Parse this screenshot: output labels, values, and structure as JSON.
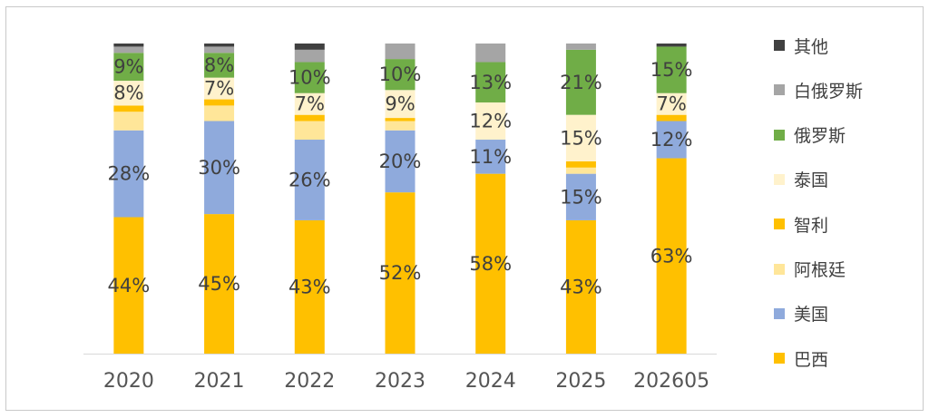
{
  "chart_data": {
    "type": "bar",
    "stacked": true,
    "normalized_to_100": true,
    "categories": [
      "2020",
      "2021",
      "2022",
      "2023",
      "2024",
      "2025",
      "202605"
    ],
    "ylim": [
      0,
      100
    ],
    "grid": false,
    "legend_position": "right",
    "series": [
      {
        "name": "巴西",
        "color": "#FFC000",
        "values": [
          44,
          45,
          43,
          52,
          58,
          43,
          63
        ],
        "labels": [
          "44%",
          "45%",
          "43%",
          "52%",
          "58%",
          "43%",
          "63%"
        ]
      },
      {
        "name": "美国",
        "color": "#8FAADC",
        "values": [
          28,
          30,
          26,
          20,
          11,
          15,
          12
        ],
        "labels": [
          "28%",
          "30%",
          "26%",
          "20%",
          "11%",
          "15%",
          "12%"
        ]
      },
      {
        "name": "阿根廷",
        "color": "#FFE699",
        "values": [
          6,
          5,
          6,
          3,
          0,
          2,
          0
        ],
        "labels": [
          "",
          "",
          "",
          "",
          "",
          "",
          ""
        ]
      },
      {
        "name": "智利",
        "color": "#FFC000",
        "values": [
          2,
          2,
          2,
          1,
          0,
          2,
          2
        ],
        "labels": [
          "",
          "",
          "",
          "",
          "",
          "",
          ""
        ]
      },
      {
        "name": "泰国",
        "color": "#FFF2CC",
        "values": [
          8,
          7,
          7,
          9,
          12,
          15,
          7
        ],
        "labels": [
          "8%",
          "7%",
          "7%",
          "9%",
          "12%",
          "15%",
          "7%"
        ]
      },
      {
        "name": "俄罗斯",
        "color": "#70AD47",
        "values": [
          9,
          8,
          10,
          10,
          13,
          21,
          15
        ],
        "labels": [
          "9%",
          "8%",
          "10%",
          "10%",
          "13%",
          "21%",
          "15%"
        ]
      },
      {
        "name": "白俄罗斯",
        "color": "#A5A5A5",
        "values": [
          2,
          2,
          4,
          5,
          6,
          2,
          0
        ],
        "labels": [
          "",
          "",
          "",
          "",
          "",
          "",
          ""
        ]
      },
      {
        "name": "其他",
        "color": "#404040",
        "values": [
          1,
          1,
          2,
          0,
          0,
          0,
          1
        ],
        "labels": [
          "",
          "",
          "",
          "",
          "",
          "",
          ""
        ]
      }
    ],
    "legend_order": [
      "其他",
      "白俄罗斯",
      "俄罗斯",
      "泰国",
      "智利",
      "阿根廷",
      "美国",
      "巴西"
    ]
  },
  "colors": {
    "axis": "#D9D9D9",
    "frame_border": "#C9C9C9",
    "tick_text": "#555555",
    "label_text": "#404040"
  }
}
